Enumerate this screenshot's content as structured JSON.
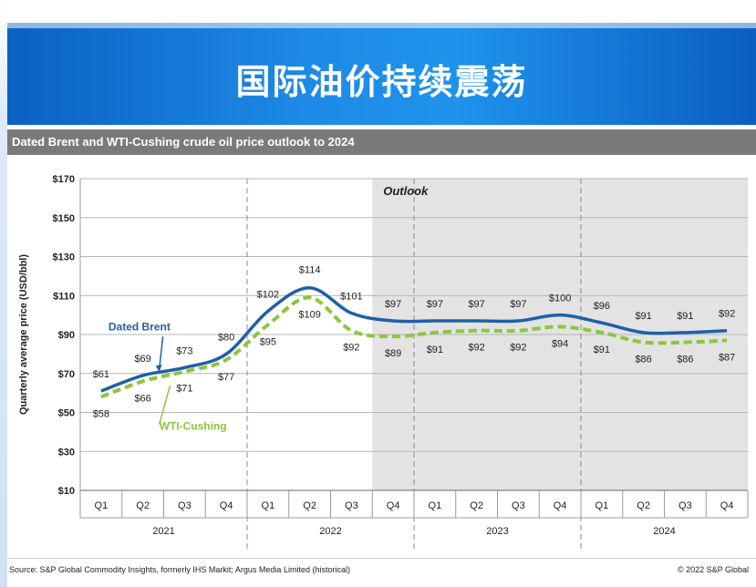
{
  "slide": {
    "title": "国际油价持续震荡"
  },
  "chart_header": "Dated Brent and WTI-Cushing crude oil price outlook to 2024",
  "footer": {
    "source": "Source: S&P Global Commodity Insights, formerly IHS Markit; Argus Media Limited (historical)",
    "copyright": "© 2022 S&P Global"
  },
  "colors": {
    "brent": "#1f5fa8",
    "wti": "#8cc63f",
    "outlook_shade": "#e3e3e3",
    "banner": "#1a86e0"
  },
  "chart_data": {
    "type": "line",
    "ylabel": "Quarterly average price (USD/bbl)",
    "ylim": [
      10,
      170
    ],
    "yticks": [
      10,
      30,
      50,
      70,
      90,
      110,
      130,
      150,
      170
    ],
    "ytick_labels": [
      "$10",
      "$30",
      "$50",
      "$70",
      "$90",
      "$110",
      "$130",
      "$150",
      "$170"
    ],
    "categories": [
      "Q1",
      "Q2",
      "Q3",
      "Q4",
      "Q1",
      "Q2",
      "Q3",
      "Q4",
      "Q1",
      "Q2",
      "Q3",
      "Q4",
      "Q1",
      "Q2",
      "Q3",
      "Q4"
    ],
    "years": [
      "2021",
      "2022",
      "2023",
      "2024"
    ],
    "outlook_label": "Outlook",
    "outlook_start_index": 7,
    "grid": true,
    "series": [
      {
        "name": "Dated Brent",
        "style": "solid",
        "values": [
          61,
          69,
          73,
          80,
          102,
          114,
          101,
          97,
          97,
          97,
          97,
          100,
          96,
          91,
          91,
          92
        ],
        "labels": [
          "$61",
          "$69",
          "$73",
          "$80",
          "$102",
          "$114",
          "$101",
          "$97",
          "$97",
          "$97",
          "$97",
          "$100",
          "$96",
          "$91",
          "$91",
          "$92"
        ]
      },
      {
        "name": "WTI-Cushing",
        "style": "dashed",
        "values": [
          58,
          66,
          71,
          77,
          95,
          109,
          92,
          89,
          91,
          92,
          92,
          94,
          91,
          86,
          86,
          87
        ],
        "labels": [
          "$58",
          "$66",
          "$71",
          "$77",
          "$95",
          "$109",
          "$92",
          "$89",
          "$91",
          "$92",
          "$92",
          "$94",
          "$91",
          "$86",
          "$86",
          "$87"
        ]
      }
    ]
  }
}
